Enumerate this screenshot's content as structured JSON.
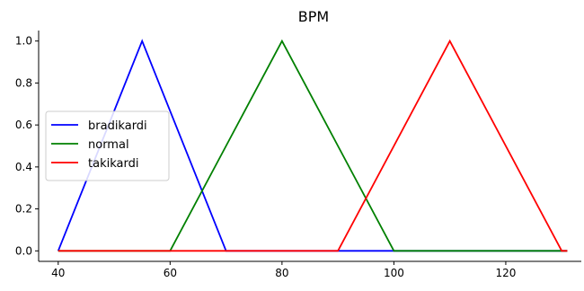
{
  "chart_data": {
    "type": "line",
    "title": "BPM",
    "xlabel": "",
    "ylabel": "",
    "xlim": [
      36.5,
      133.5
    ],
    "ylim": [
      -0.05,
      1.05
    ],
    "xticks": [
      40,
      60,
      80,
      100,
      120
    ],
    "yticks": [
      0.0,
      0.2,
      0.4,
      0.6,
      0.8,
      1.0
    ],
    "xtick_labels": [
      "40",
      "60",
      "80",
      "100",
      "120"
    ],
    "ytick_labels": [
      "0.0",
      "0.2",
      "0.4",
      "0.6",
      "0.8",
      "1.0"
    ],
    "grid": false,
    "legend_placement": "center-left",
    "series": [
      {
        "name": "bradikardi",
        "color": "#0000ff",
        "x": [
          40,
          55,
          70,
          131
        ],
        "y": [
          0,
          1,
          0,
          0
        ]
      },
      {
        "name": "normal",
        "color": "#008000",
        "x": [
          40,
          60,
          80,
          100,
          131
        ],
        "y": [
          0,
          0,
          1,
          0,
          0
        ]
      },
      {
        "name": "takikardi",
        "color": "#ff0000",
        "x": [
          40,
          90,
          110,
          130,
          131
        ],
        "y": [
          0,
          0,
          1,
          0,
          0
        ]
      }
    ]
  }
}
